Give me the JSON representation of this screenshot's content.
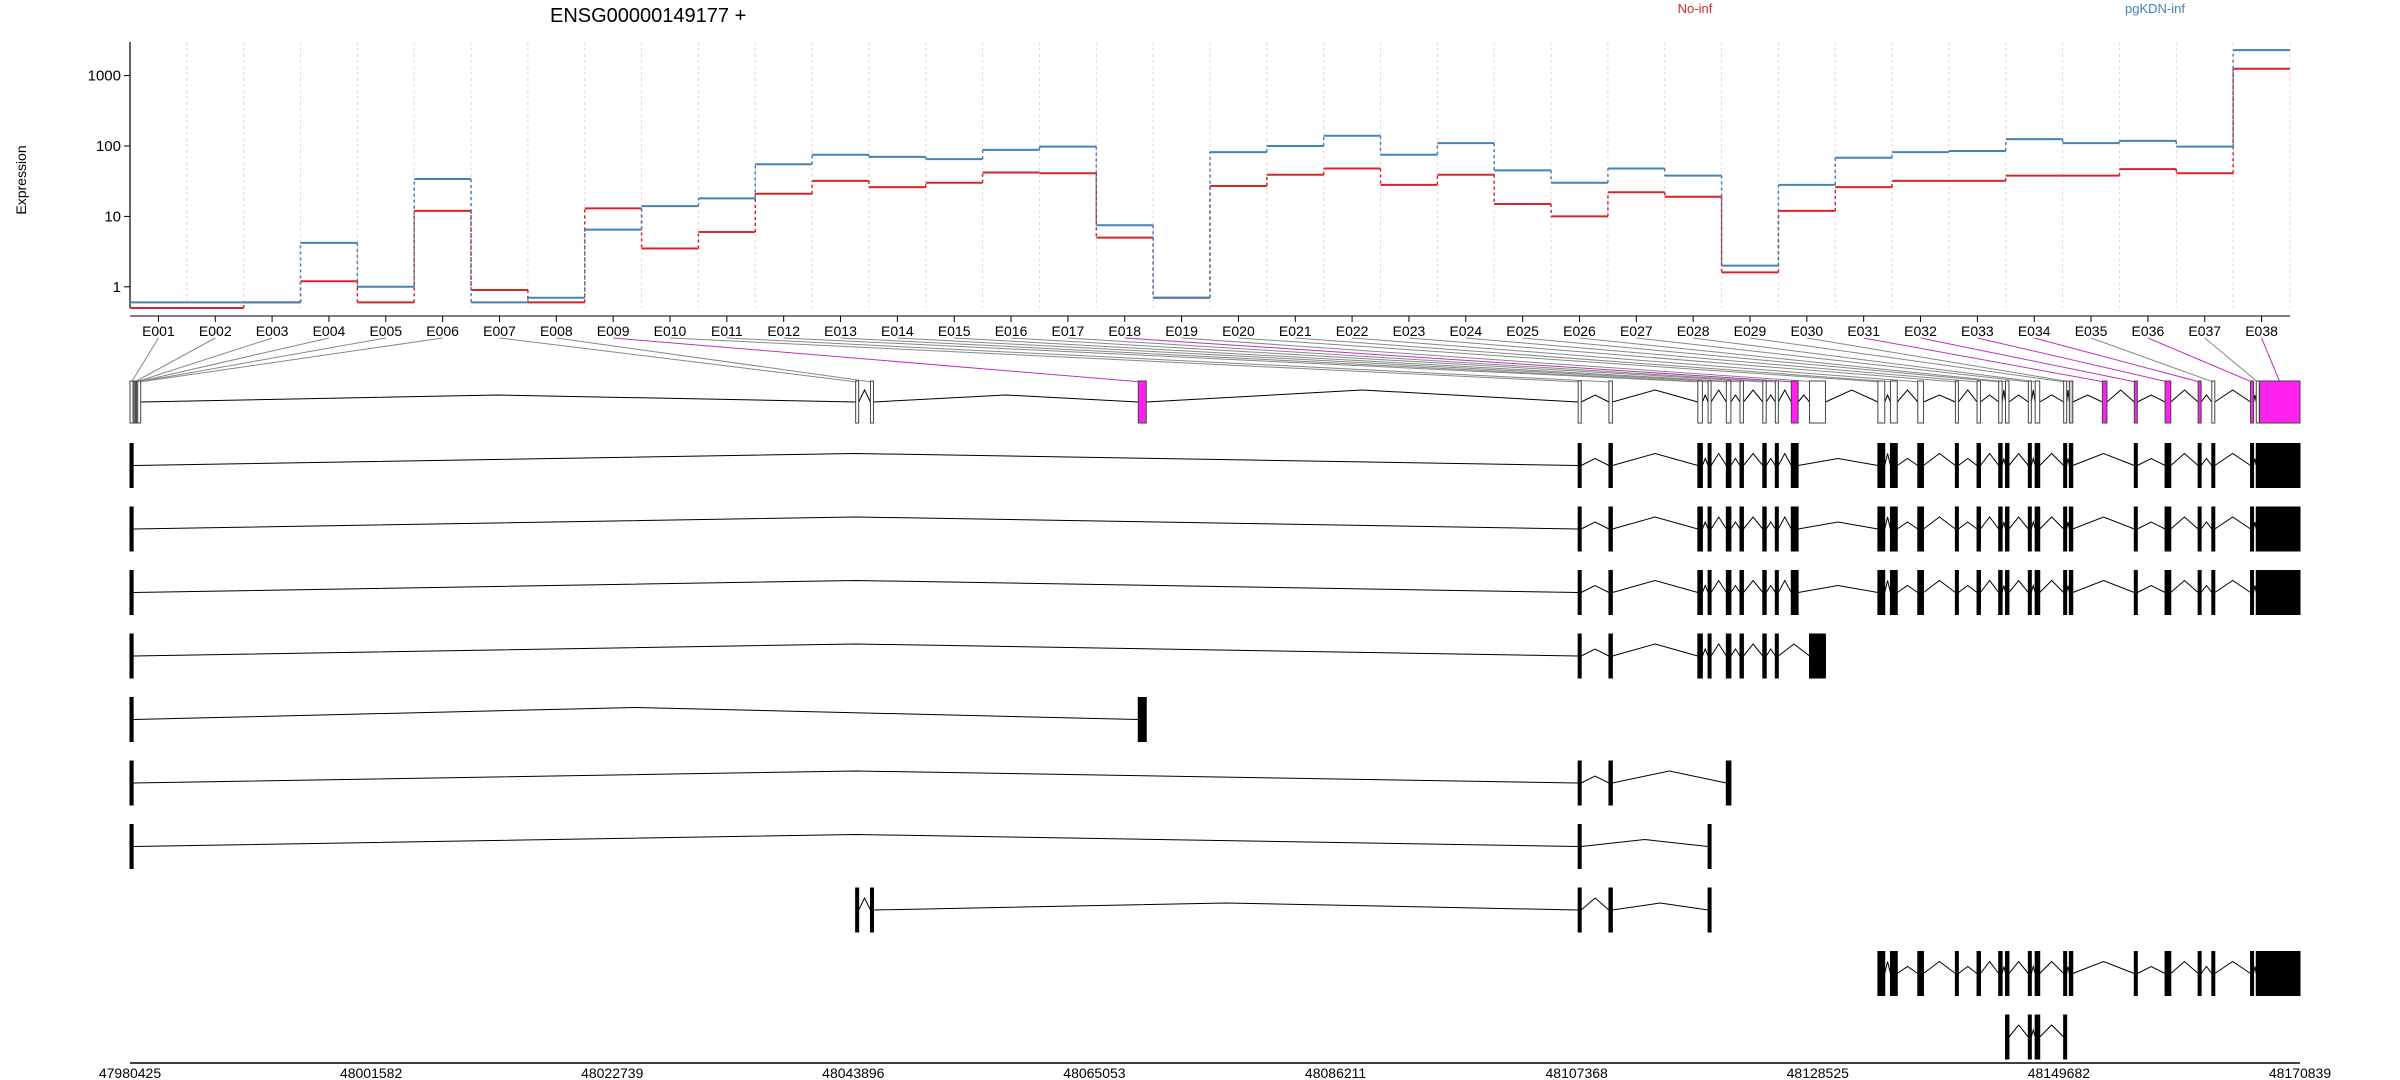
{
  "chart_data": {
    "type": "line",
    "title": "ENSG00000149177 +",
    "ylabel": "Expression",
    "yscale": "log",
    "ylim": [
      0.5,
      3000
    ],
    "yticks": [
      "1",
      "10",
      "100",
      "1000"
    ],
    "series": [
      {
        "name": "No-inf",
        "color": "#d62728",
        "values": [
          0.5,
          0.5,
          0.6,
          1.2,
          0.6,
          12,
          0.9,
          0.6,
          13,
          3.5,
          6,
          21,
          32,
          26,
          30,
          42,
          41,
          5,
          0.7,
          27,
          39,
          48,
          28,
          39,
          15,
          10,
          22,
          19,
          1.6,
          12,
          26,
          32,
          32,
          38,
          38,
          47,
          41,
          1250
        ]
      },
      {
        "name": "pgKDN-inf",
        "color": "#4682b4",
        "values": [
          0.6,
          0.6,
          0.6,
          4.2,
          1.0,
          34,
          0.6,
          0.7,
          6.5,
          14,
          18,
          55,
          75,
          70,
          65,
          88,
          98,
          7.5,
          0.7,
          82,
          100,
          140,
          75,
          110,
          45,
          30,
          48,
          38,
          2,
          28,
          68,
          82,
          85,
          125,
          110,
          118,
          98,
          2300
        ]
      }
    ],
    "exons": [
      "E001",
      "E002",
      "E003",
      "E004",
      "E005",
      "E006",
      "E007",
      "E008",
      "E009",
      "E010",
      "E011",
      "E012",
      "E013",
      "E014",
      "E015",
      "E016",
      "E017",
      "E018",
      "E019",
      "E020",
      "E021",
      "E022",
      "E023",
      "E024",
      "E025",
      "E026",
      "E027",
      "E028",
      "E029",
      "E030",
      "E031",
      "E032",
      "E033",
      "E034",
      "E035",
      "E036",
      "E037",
      "E038"
    ],
    "significant_exons": [
      "E009",
      "E018",
      "E031",
      "E032",
      "E033",
      "E034",
      "E036",
      "E038"
    ],
    "genomic_ticks": [
      "47980425",
      "48001582",
      "48022739",
      "48043896",
      "48065053",
      "48086211",
      "48107368",
      "48128525",
      "48149682",
      "48170839"
    ],
    "genomic_range": [
      47980425,
      48170839
    ],
    "exon_genomic": [
      [
        47980425,
        47980700
      ],
      [
        47980700,
        47980800
      ],
      [
        47980800,
        47980900
      ],
      [
        47980900,
        47981000
      ],
      [
        47981000,
        47981100
      ],
      [
        47981100,
        47981200
      ],
      [
        48044100,
        48044300
      ],
      [
        48045400,
        48045650
      ],
      [
        48068900,
        48069600
      ],
      [
        48107500,
        48107600
      ],
      [
        48110200,
        48110500
      ],
      [
        48118000,
        48118400
      ],
      [
        48118900,
        48119100
      ],
      [
        48120500,
        48120900
      ],
      [
        48121700,
        48122000
      ],
      [
        48123700,
        48124000
      ],
      [
        48124800,
        48125000
      ],
      [
        48126200,
        48126800
      ],
      [
        48127800,
        48129200
      ],
      [
        48133800,
        48134400
      ],
      [
        48134900,
        48135500
      ],
      [
        48137300,
        48137800
      ],
      [
        48140600,
        48140800
      ],
      [
        48142500,
        48142800
      ],
      [
        48144400,
        48144700
      ],
      [
        48145000,
        48145300
      ],
      [
        48147000,
        48147200
      ],
      [
        48147600,
        48148000
      ],
      [
        48150100,
        48150300
      ],
      [
        48150600,
        48150900
      ],
      [
        48153500,
        48153900
      ],
      [
        48156300,
        48156500
      ],
      [
        48159000,
        48159500
      ],
      [
        48161900,
        48162100
      ],
      [
        48163100,
        48163300
      ],
      [
        48166500,
        48166700
      ],
      [
        48167000,
        48167200
      ],
      [
        48167300,
        48170839
      ]
    ],
    "transcripts": [
      [
        0,
        1,
        2,
        3,
        4,
        5,
        6,
        7,
        8,
        9,
        10,
        11,
        12,
        13,
        14,
        15,
        16,
        17,
        18,
        19,
        20,
        21,
        22,
        23,
        24,
        25,
        26,
        27,
        28,
        29,
        30,
        31,
        32,
        33,
        34,
        35,
        36,
        37
      ],
      [
        0,
        9,
        10,
        11,
        12,
        13,
        14,
        15,
        16,
        17,
        19,
        20,
        21,
        22,
        23,
        24,
        25,
        26,
        27,
        28,
        29,
        31,
        32,
        33,
        34,
        35,
        36,
        37
      ],
      [
        0,
        9,
        10,
        11,
        12,
        13,
        14,
        15,
        16,
        17,
        19,
        20,
        21,
        22,
        23,
        24,
        25,
        26,
        27,
        28,
        29,
        31,
        32,
        33,
        34,
        35,
        36,
        37
      ],
      [
        0,
        9,
        10,
        11,
        12,
        13,
        14,
        15,
        16,
        17,
        19,
        20,
        21,
        22,
        23,
        24,
        25,
        26,
        27,
        28,
        29,
        31,
        32,
        33,
        34,
        35,
        36,
        37
      ],
      [
        0,
        9,
        10,
        11,
        12,
        13,
        14,
        15,
        16,
        18
      ],
      [
        0,
        8
      ],
      [
        0,
        9,
        10,
        13
      ],
      [
        0,
        9,
        12
      ],
      [
        6,
        7,
        9,
        10,
        12
      ],
      [
        19,
        20,
        21,
        22,
        23,
        24,
        25,
        26,
        27,
        28,
        29,
        31,
        32,
        33,
        34,
        35,
        36,
        37
      ],
      [
        25,
        26,
        27,
        28
      ]
    ]
  }
}
